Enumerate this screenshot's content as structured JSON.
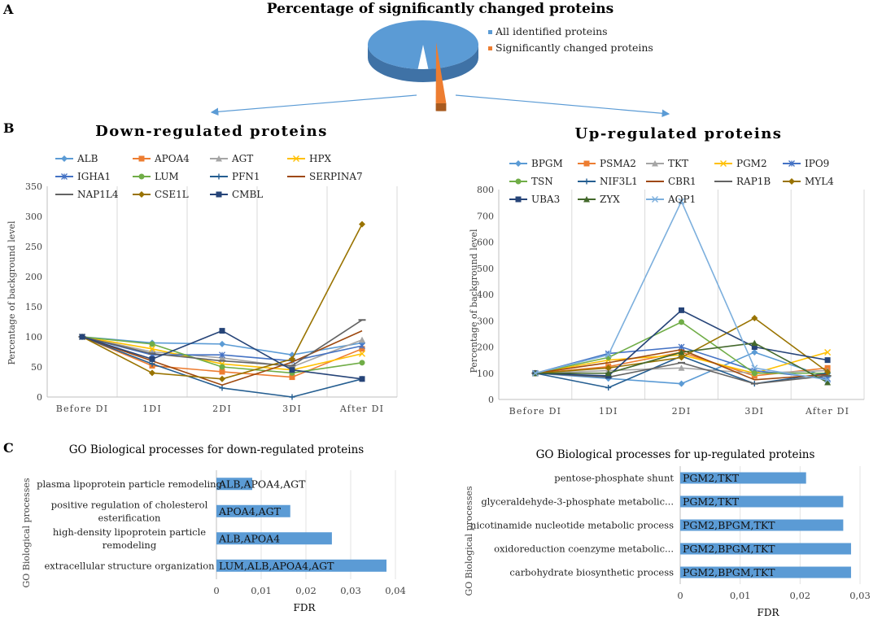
{
  "panels": {
    "a": "A",
    "b": "B",
    "c": "C"
  },
  "chart_data": [
    {
      "id": "pie",
      "type": "pie",
      "title": "Percentage of significantly changed proteins",
      "labels": [
        "All identified proteins",
        "Significantly changed proteins"
      ],
      "values": [
        97,
        3
      ],
      "colors": [
        "#5b9bd5",
        "#ed7d31"
      ],
      "legend": "right"
    },
    {
      "id": "down",
      "type": "line",
      "title": "Down-regulated proteins",
      "ylabel": "Percentage of background level",
      "categories": [
        "Before DI",
        "1DI",
        "2DI",
        "3DI",
        "After DI"
      ],
      "ylim": [
        0,
        350
      ],
      "yticks": [
        0,
        50,
        100,
        150,
        200,
        250,
        300,
        350
      ],
      "legend": "top",
      "series": [
        {
          "name": "ALB",
          "values": [
            100,
            90,
            88,
            70,
            90
          ],
          "color": "#5b9bd5",
          "marker": "diamond"
        },
        {
          "name": "APOA4",
          "values": [
            100,
            52,
            42,
            33,
            80
          ],
          "color": "#ed7d31",
          "marker": "square"
        },
        {
          "name": "AGT",
          "values": [
            100,
            75,
            65,
            50,
            95
          ],
          "color": "#a5a5a5",
          "marker": "triangle"
        },
        {
          "name": "HPX",
          "values": [
            100,
            80,
            55,
            45,
            72
          ],
          "color": "#ffc000",
          "marker": "x"
        },
        {
          "name": "IGHA1",
          "values": [
            100,
            70,
            70,
            60,
            85
          ],
          "color": "#4472c4",
          "marker": "star"
        },
        {
          "name": "LUM",
          "values": [
            100,
            88,
            50,
            40,
            57
          ],
          "color": "#70ad47",
          "marker": "circle"
        },
        {
          "name": "PFN1",
          "values": [
            100,
            55,
            15,
            0,
            30
          ],
          "color": "#255e91",
          "marker": "plus"
        },
        {
          "name": "SERPINA7",
          "values": [
            100,
            60,
            20,
            58,
            110
          ],
          "color": "#9e480e",
          "marker": "none"
        },
        {
          "name": "NAP1L4",
          "values": [
            100,
            72,
            60,
            52,
            128
          ],
          "color": "#636363",
          "marker": "dash"
        },
        {
          "name": "CSE1L",
          "values": [
            100,
            40,
            30,
            63,
            287
          ],
          "color": "#997300",
          "marker": "diamond"
        },
        {
          "name": "CMBL",
          "values": [
            100,
            63,
            110,
            45,
            30
          ],
          "color": "#264478",
          "marker": "square"
        }
      ]
    },
    {
      "id": "up",
      "type": "line",
      "title": "Up-regulated proteins",
      "ylabel": "Percentage of background level",
      "categories": [
        "Before DI",
        "1DI",
        "2DI",
        "3DI",
        "After DI"
      ],
      "ylim": [
        0,
        800
      ],
      "yticks": [
        0,
        100,
        200,
        300,
        400,
        500,
        600,
        700,
        800
      ],
      "legend": "top",
      "series": [
        {
          "name": "BPGM",
          "values": [
            100,
            80,
            60,
            180,
            85
          ],
          "color": "#5b9bd5",
          "marker": "diamond"
        },
        {
          "name": "PSMA2",
          "values": [
            100,
            125,
            180,
            90,
            120
          ],
          "color": "#ed7d31",
          "marker": "square"
        },
        {
          "name": "TKT",
          "values": [
            100,
            110,
            120,
            100,
            110
          ],
          "color": "#a5a5a5",
          "marker": "triangle"
        },
        {
          "name": "PGM2",
          "values": [
            100,
            150,
            170,
            100,
            180
          ],
          "color": "#ffc000",
          "marker": "x"
        },
        {
          "name": "IPO9",
          "values": [
            100,
            175,
            200,
            110,
            80
          ],
          "color": "#4472c4",
          "marker": "star"
        },
        {
          "name": "TSN",
          "values": [
            100,
            160,
            295,
            100,
            100
          ],
          "color": "#70ad47",
          "marker": "circle"
        },
        {
          "name": "NIF3L1",
          "values": [
            100,
            45,
            165,
            60,
            100
          ],
          "color": "#255e91",
          "marker": "plus"
        },
        {
          "name": "CBR1",
          "values": [
            100,
            140,
            190,
            75,
            95
          ],
          "color": "#9e480e",
          "marker": "none"
        },
        {
          "name": "RAP1B",
          "values": [
            100,
            85,
            140,
            60,
            90
          ],
          "color": "#636363",
          "marker": "dash"
        },
        {
          "name": "MYL4",
          "values": [
            100,
            120,
            160,
            310,
            105
          ],
          "color": "#997300",
          "marker": "diamond"
        },
        {
          "name": "UBA3",
          "values": [
            100,
            90,
            340,
            200,
            150
          ],
          "color": "#264478",
          "marker": "square"
        },
        {
          "name": "ZYX",
          "values": [
            100,
            100,
            180,
            215,
            65
          ],
          "color": "#43682b",
          "marker": "triangle"
        },
        {
          "name": "AQP1",
          "values": [
            100,
            170,
            755,
            120,
            75
          ],
          "color": "#7cafdd",
          "marker": "x"
        }
      ]
    },
    {
      "id": "go-down",
      "type": "bar",
      "orientation": "horizontal",
      "title": "GO Biological  processes for down-regulated  proteins",
      "ylabel": "GO Biological processes",
      "xlabel": "FDR",
      "xlim": [
        0,
        0.04
      ],
      "xticks": [
        "0",
        "0,01",
        "0,02",
        "0,03",
        "0,04"
      ],
      "categories": [
        [
          "plasma lipoprotein particle remodeling"
        ],
        [
          "positive regulation of cholesterol",
          "esterification"
        ],
        [
          "high-density lipoprotein particle",
          "remodeling"
        ],
        [
          "extracellular structure organization"
        ]
      ],
      "values": [
        0.008,
        0.0165,
        0.0258,
        0.038
      ],
      "bar_labels": [
        "ALB,APOA4,AGT",
        "APOA4,AGT",
        "ALB,APOA4",
        "LUM,ALB,APOA4,AGT"
      ],
      "color": "#5b9bd5"
    },
    {
      "id": "go-up",
      "type": "bar",
      "orientation": "horizontal",
      "title": "GO Biological  processes for up-regulated  proteins",
      "ylabel": "GO Biological processes",
      "xlabel": "FDR",
      "xlim": [
        0,
        0.03
      ],
      "xticks": [
        "0",
        "0,01",
        "0,02",
        "0,03"
      ],
      "categories": [
        [
          "pentose-phosphate shunt"
        ],
        [
          "glyceraldehyde-3-phosphate metabolic..."
        ],
        [
          "nicotinamide nucleotide metabolic process"
        ],
        [
          "oxidoreduction coenzyme metabolic..."
        ],
        [
          "carbohydrate biosynthetic process"
        ]
      ],
      "values": [
        0.021,
        0.0272,
        0.0272,
        0.0285,
        0.0285
      ],
      "bar_labels": [
        "PGM2,TKT",
        "PGM2,TKT",
        "PGM2,BPGM,TKT",
        "PGM2,BPGM,TKT",
        "PGM2,BPGM,TKT"
      ],
      "color": "#5b9bd5"
    }
  ]
}
